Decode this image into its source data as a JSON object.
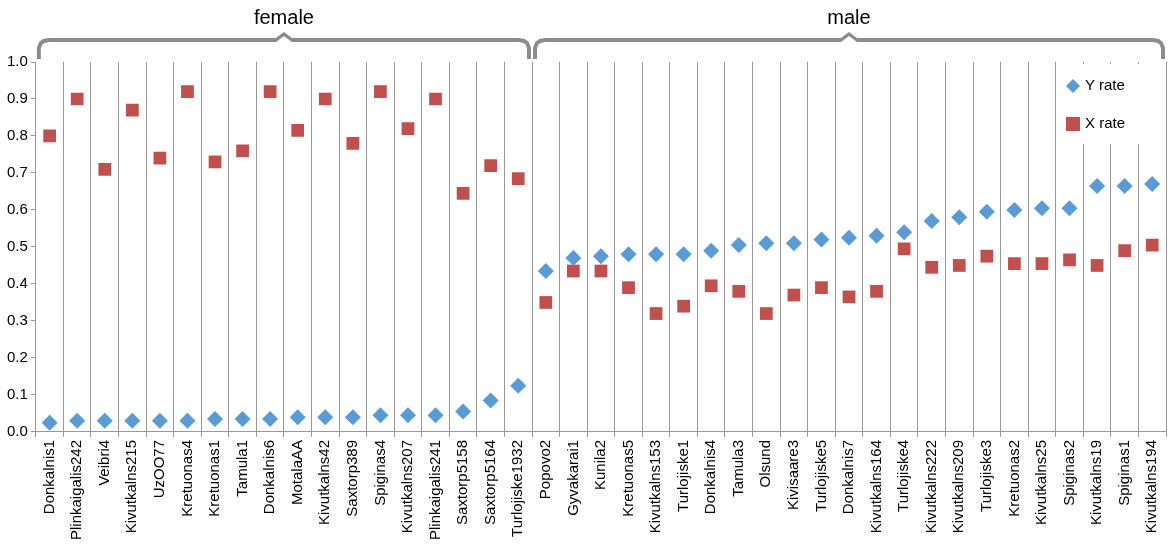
{
  "chart_data": {
    "type": "scatter",
    "categories": [
      "Donkalnis1",
      "Plinkaigalis242",
      "Veibri4",
      "Kivutkalns215",
      "UzOO77",
      "Kretuonas4",
      "Kretuonas1",
      "Tamula1",
      "Donkalnis6",
      "MotalaAA",
      "Kivutkalns42",
      "Saxtorp389",
      "Spiginas4",
      "Kivutkalns207",
      "Plinkaigalis241",
      "Saxtorp5158",
      "Saxtorp5164",
      "Turlojiske1932",
      "Popovo2",
      "Gyvakarai1",
      "Kunila2",
      "Kretuonas5",
      "Kivutkalns153",
      "Turlojiske1",
      "Donkalnis4",
      "Tamula3",
      "Olsund",
      "Kivisaare3",
      "Turlojiske5",
      "Donkalnis7",
      "Kivutkalns164",
      "Turlojiske4",
      "Kivutkalns222",
      "Kivutkalns209",
      "Turlojiske3",
      "Kretuonas2",
      "Kivutkalns25",
      "Spiginas2",
      "Kivutkalns19",
      "Spiginas1",
      "Kivutkalns194"
    ],
    "series": [
      {
        "name": "Y rate",
        "color": "#5b9bd5",
        "marker": "diamond",
        "values": [
          0.025,
          0.03,
          0.03,
          0.03,
          0.03,
          0.03,
          0.035,
          0.035,
          0.035,
          0.04,
          0.04,
          0.04,
          0.045,
          0.045,
          0.045,
          0.055,
          0.085,
          0.125,
          0.435,
          0.47,
          0.475,
          0.48,
          0.48,
          0.48,
          0.49,
          0.505,
          0.51,
          0.51,
          0.52,
          0.525,
          0.53,
          0.54,
          0.57,
          0.58,
          0.595,
          0.6,
          0.605,
          0.605,
          0.665,
          0.665,
          0.67
        ]
      },
      {
        "name": "X rate",
        "color": "#c0504d",
        "marker": "square",
        "values": [
          0.8,
          0.9,
          0.71,
          0.87,
          0.74,
          0.92,
          0.73,
          0.76,
          0.92,
          0.815,
          0.9,
          0.78,
          0.92,
          0.82,
          0.9,
          0.645,
          0.72,
          0.685,
          0.35,
          0.435,
          0.435,
          0.39,
          0.32,
          0.34,
          0.395,
          0.38,
          0.32,
          0.37,
          0.39,
          0.365,
          0.38,
          0.495,
          0.445,
          0.45,
          0.475,
          0.455,
          0.455,
          0.465,
          0.45,
          0.49,
          0.505
        ]
      }
    ],
    "ylim": [
      0,
      1
    ],
    "yticks": [
      {
        "value": 0,
        "label": "0.0"
      },
      {
        "value": 0.1,
        "label": "0.1"
      },
      {
        "value": 0.2,
        "label": "0.2"
      },
      {
        "value": 0.3,
        "label": "0.3"
      },
      {
        "value": 0.4,
        "label": "0.4"
      },
      {
        "value": 0.5,
        "label": "0.5"
      },
      {
        "value": 0.6,
        "label": "0.6"
      },
      {
        "value": 0.7,
        "label": "0.7"
      },
      {
        "value": 0.8,
        "label": "0.8"
      },
      {
        "value": 0.9,
        "label": "0.9"
      },
      {
        "value": 1,
        "label": "1.0"
      }
    ],
    "grid": "x",
    "legend": "top right",
    "annotations": [
      "female",
      "male"
    ]
  }
}
